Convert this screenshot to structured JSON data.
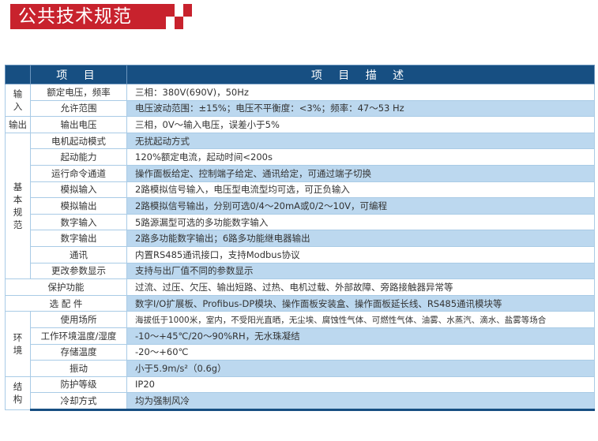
{
  "title": "公共技术规范",
  "colors": {
    "brand_red": "#c8222d",
    "header_blue": "#174f82",
    "row_blue": "#bcd8ef"
  },
  "table": {
    "headers": [
      "",
      "项 目",
      "项 目 描 述"
    ],
    "rows": [
      {
        "group": "输入",
        "group_rows": 2,
        "item": "额定电压，频率",
        "desc": "三相：380V(690V)，50Hz"
      },
      {
        "item": "允许范围",
        "desc": "电压波动范围：±15%；电压不平衡度：<3%；频率：47～53 Hz"
      },
      {
        "group": "输出",
        "group_rows": 1,
        "item": "输出电压",
        "desc": "三相，0V～输入电压，误差小于5%"
      },
      {
        "group": "基本规范",
        "group_rows": 9,
        "item": "电机起动模式",
        "desc": "无扰起动方式"
      },
      {
        "item": "起动能力",
        "desc": "120%额定电流，起动时间<200s"
      },
      {
        "item": "运行命令通道",
        "desc": "操作面板给定、控制端子给定、通讯给定，可通过端子切换"
      },
      {
        "item": "模拟输入",
        "desc": "2路模拟信号输入，电压型电流型均可选，可正负输入"
      },
      {
        "item": "模拟输出",
        "desc": "2路模拟信号输出，分别可选0/4～20mA或0/2～10V，可编程"
      },
      {
        "item": "数字输入",
        "desc": "5路源漏型可选的多功能数字输入"
      },
      {
        "item": "数字输出",
        "desc": "2路多功能数字输出；6路多功能继电器输出"
      },
      {
        "item": "通讯",
        "desc": "内置RS485通讯接口，支持Modbus协议"
      },
      {
        "item": "更改参数显示",
        "desc": "支持与出厂值不同的参数显示"
      },
      {
        "span_item": "保护功能",
        "desc": "过流、过压、欠压、输出短路、过热、电机过载、外部故障、旁路接触器异常等"
      },
      {
        "span_item": "选 配 件",
        "desc": "数字I/O扩展板、Profibus-DP模块、操作面板安装盒、操作面板延长线、RS485通讯模块等"
      },
      {
        "group": "环境",
        "group_rows": 4,
        "item": "使用场所",
        "desc": "海拔低于1000米，室内，不受阳光直晒，无尘埃、腐蚀性气体、可燃性气体、油雾、水蒸汽、滴水、盐雾等场合"
      },
      {
        "item": "工作环境温度/湿度",
        "desc": "-10～+45℃/20～90%RH，无水珠凝结"
      },
      {
        "item": "存储温度",
        "desc": "-20～+60℃"
      },
      {
        "item": "振动",
        "desc": "小于5.9m/s²（0.6g）"
      },
      {
        "group": "结构",
        "group_rows": 2,
        "item": "防护等级",
        "desc": "IP20"
      },
      {
        "item": "冷却方式",
        "desc": "均为强制风冷"
      }
    ]
  }
}
